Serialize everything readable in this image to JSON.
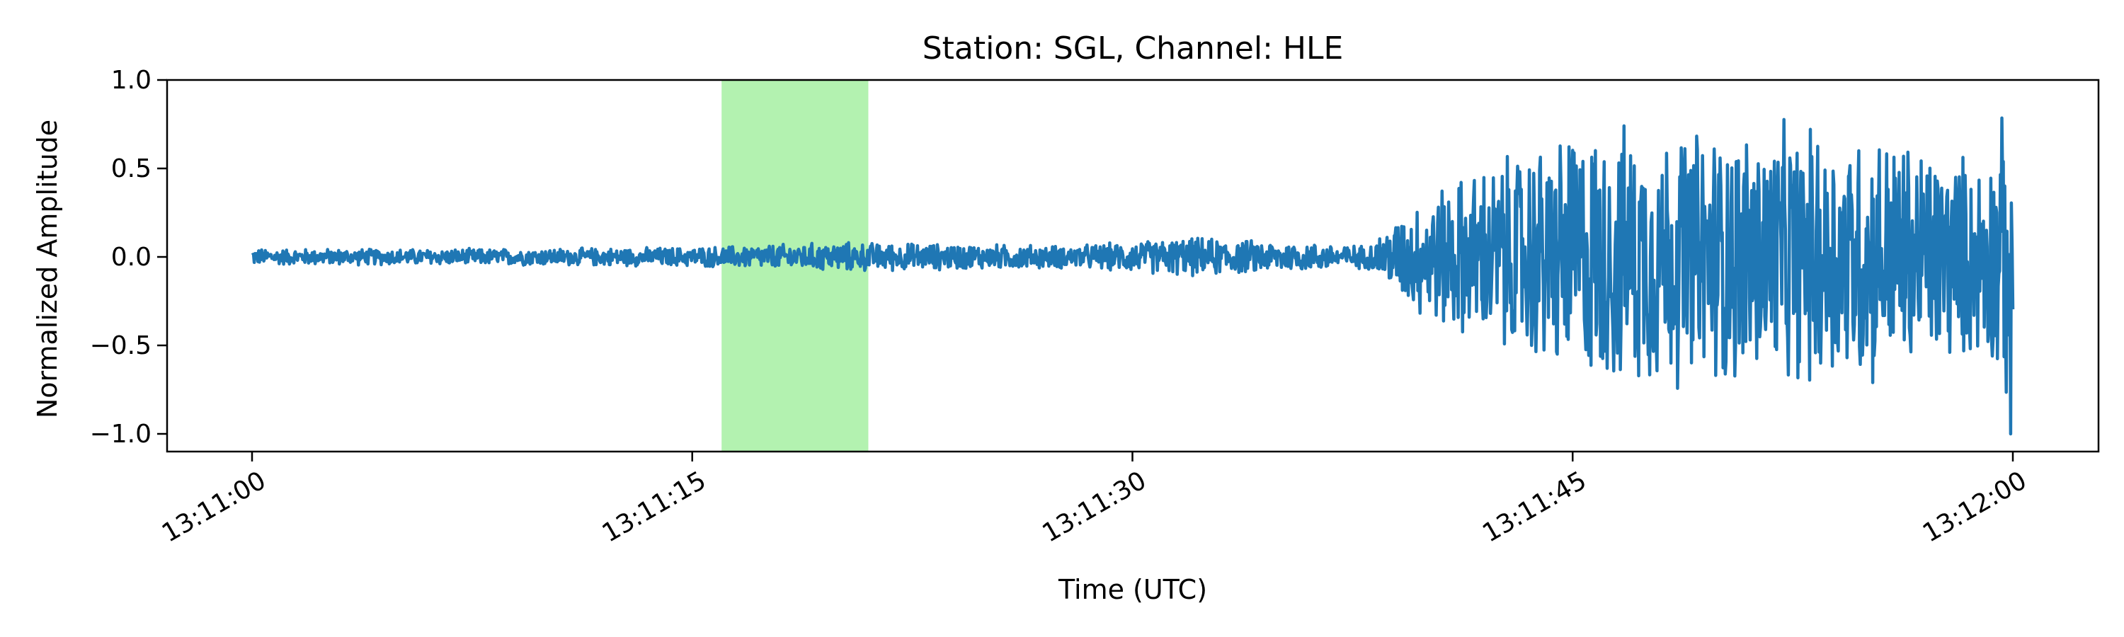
{
  "chart_data": {
    "type": "line",
    "title": "Station: SGL, Channel: HLE",
    "xlabel": "Time (UTC)",
    "ylabel": "Normalized Amplitude",
    "x_domain": [
      "13:11:00",
      "13:12:00"
    ],
    "ylim": [
      -1.1,
      1.0
    ],
    "xticks": [
      "13:11:00",
      "13:11:15",
      "13:11:30",
      "13:11:45",
      "13:12:00"
    ],
    "yticks": [
      1.0,
      0.5,
      0.0,
      -0.5,
      -1.0
    ],
    "ytick_labels": [
      "1.0",
      "0.5",
      "0.0",
      "−0.5",
      "−1.0"
    ],
    "grid": false,
    "highlight": {
      "start": "13:11:16",
      "end": "13:11:21",
      "color": "#b3f2b0"
    },
    "series": [
      {
        "color": "#1f77b4",
        "envelope_keypoints": {
          "time": [
            "13:11:00",
            "13:11:08",
            "13:11:15",
            "13:11:20",
            "13:11:28",
            "13:11:32",
            "13:11:38",
            "13:11:40",
            "13:11:45",
            "13:11:55",
            "13:11:59",
            "13:12:00"
          ],
          "amplitude": [
            0.05,
            0.05,
            0.06,
            0.09,
            0.07,
            0.12,
            0.07,
            0.4,
            0.8,
            0.8,
            0.6,
            1.0
          ]
        }
      }
    ]
  }
}
